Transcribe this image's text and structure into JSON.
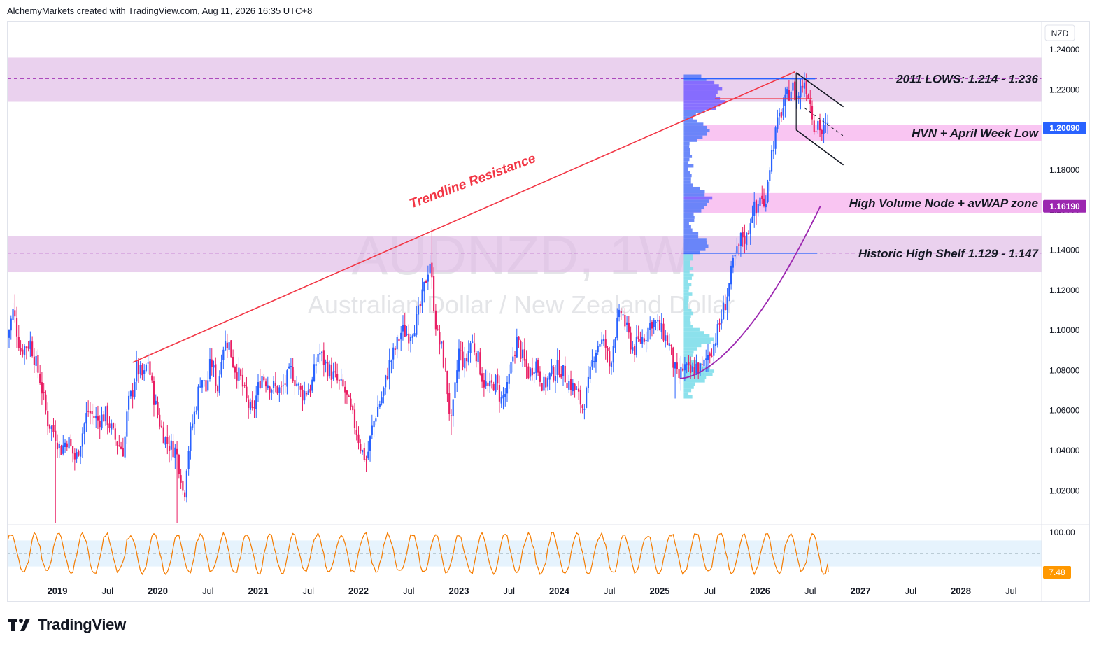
{
  "header": {
    "text": "AlchemyMarkets created with TradingView.com, Aug 11, 2026 16:35 UTC+8"
  },
  "footer": {
    "logo_text": "TradingView",
    "logo_icon": "tradingview-logo-icon"
  },
  "colors": {
    "up_candle": "#2962ff",
    "down_candle": "#e91e63",
    "resistance_zone": "#e1bee7",
    "volume_node_zone": "#f8bbf0",
    "trendline": "#f23645",
    "avwap": "#9c27b0",
    "oscillator": "#f57c00",
    "osc_band": "#e3f2fd",
    "last_price_tag": "#2962ff",
    "avwap_tag": "#9c27b0",
    "osc_tag": "#ff9800"
  },
  "chart_data": {
    "type": "candlestick",
    "symbol": "AUDNZD",
    "timeframe": "1W",
    "watermark_title": "AUDNZD, 1W",
    "watermark_subtitle": "Australian Dollar / New Zealand Dollar",
    "currency": "NZD",
    "ylim": [
      1.0035,
      1.2455
    ],
    "y_ticks": [
      "1.24000",
      "1.22000",
      "1.20000",
      "1.18000",
      "1.16000",
      "1.14000",
      "1.12000",
      "1.10000",
      "1.08000",
      "1.06000",
      "1.04000",
      "1.02000"
    ],
    "x_labels": [
      {
        "label": "2019",
        "t": 2019.0,
        "bold": true
      },
      {
        "label": "Jul",
        "t": 2019.5,
        "bold": false
      },
      {
        "label": "2020",
        "t": 2020.0,
        "bold": true
      },
      {
        "label": "Jul",
        "t": 2020.5,
        "bold": false
      },
      {
        "label": "2021",
        "t": 2021.0,
        "bold": true
      },
      {
        "label": "Jul",
        "t": 2021.5,
        "bold": false
      },
      {
        "label": "2022",
        "t": 2022.0,
        "bold": true
      },
      {
        "label": "Jul",
        "t": 2022.5,
        "bold": false
      },
      {
        "label": "2023",
        "t": 2023.0,
        "bold": true
      },
      {
        "label": "Jul",
        "t": 2023.5,
        "bold": false
      },
      {
        "label": "2024",
        "t": 2024.0,
        "bold": true
      },
      {
        "label": "Jul",
        "t": 2024.5,
        "bold": false
      },
      {
        "label": "2025",
        "t": 2025.0,
        "bold": true
      },
      {
        "label": "Jul",
        "t": 2025.5,
        "bold": false
      },
      {
        "label": "2026",
        "t": 2026.0,
        "bold": true
      },
      {
        "label": "Jul",
        "t": 2026.5,
        "bold": false
      },
      {
        "label": "2027",
        "t": 2027.0,
        "bold": true
      },
      {
        "label": "Jul",
        "t": 2027.5,
        "bold": false
      },
      {
        "label": "2028",
        "t": 2028.0,
        "bold": true
      },
      {
        "label": "Jul",
        "t": 2028.5,
        "bold": false
      }
    ],
    "price_path": [
      [
        2018.5,
        1.092
      ],
      [
        2018.58,
        1.11
      ],
      [
        2018.65,
        1.09
      ],
      [
        2018.75,
        1.094
      ],
      [
        2018.85,
        1.075
      ],
      [
        2018.92,
        1.055
      ],
      [
        2019.0,
        1.048
      ],
      [
        2019.05,
        1.04
      ],
      [
        2019.12,
        1.046
      ],
      [
        2019.2,
        1.035
      ],
      [
        2019.25,
        1.045
      ],
      [
        2019.32,
        1.06
      ],
      [
        2019.42,
        1.055
      ],
      [
        2019.5,
        1.058
      ],
      [
        2019.6,
        1.045
      ],
      [
        2019.68,
        1.04
      ],
      [
        2019.72,
        1.062
      ],
      [
        2019.78,
        1.072
      ],
      [
        2019.8,
        1.082
      ],
      [
        2019.88,
        1.076
      ],
      [
        2019.92,
        1.086
      ],
      [
        2019.96,
        1.072
      ],
      [
        2020.0,
        1.062
      ],
      [
        2020.05,
        1.052
      ],
      [
        2020.1,
        1.045
      ],
      [
        2020.15,
        1.042
      ],
      [
        2020.2,
        1.04
      ],
      [
        2020.25,
        1.028
      ],
      [
        2020.28,
        1.015
      ],
      [
        2020.31,
        1.035
      ],
      [
        2020.35,
        1.05
      ],
      [
        2020.4,
        1.062
      ],
      [
        2020.45,
        1.078
      ],
      [
        2020.5,
        1.07
      ],
      [
        2020.55,
        1.085
      ],
      [
        2020.62,
        1.07
      ],
      [
        2020.66,
        1.092
      ],
      [
        2020.72,
        1.095
      ],
      [
        2020.78,
        1.082
      ],
      [
        2020.85,
        1.075
      ],
      [
        2020.9,
        1.065
      ],
      [
        2020.96,
        1.058
      ],
      [
        2021.05,
        1.078
      ],
      [
        2021.15,
        1.072
      ],
      [
        2021.25,
        1.07
      ],
      [
        2021.35,
        1.08
      ],
      [
        2021.45,
        1.068
      ],
      [
        2021.55,
        1.072
      ],
      [
        2021.62,
        1.09
      ],
      [
        2021.7,
        1.082
      ],
      [
        2021.8,
        1.075
      ],
      [
        2021.88,
        1.07
      ],
      [
        2021.95,
        1.058
      ],
      [
        2022.0,
        1.05
      ],
      [
        2022.05,
        1.04
      ],
      [
        2022.1,
        1.035
      ],
      [
        2022.15,
        1.05
      ],
      [
        2022.2,
        1.06
      ],
      [
        2022.26,
        1.068
      ],
      [
        2022.32,
        1.082
      ],
      [
        2022.38,
        1.09
      ],
      [
        2022.45,
        1.1
      ],
      [
        2022.52,
        1.098
      ],
      [
        2022.6,
        1.105
      ],
      [
        2022.65,
        1.115
      ],
      [
        2022.7,
        1.128
      ],
      [
        2022.73,
        1.135
      ],
      [
        2022.76,
        1.118
      ],
      [
        2022.8,
        1.098
      ],
      [
        2022.85,
        1.09
      ],
      [
        2022.9,
        1.072
      ],
      [
        2022.94,
        1.052
      ],
      [
        2022.97,
        1.065
      ],
      [
        2023.02,
        1.09
      ],
      [
        2023.08,
        1.082
      ],
      [
        2023.14,
        1.095
      ],
      [
        2023.2,
        1.088
      ],
      [
        2023.26,
        1.075
      ],
      [
        2023.32,
        1.07
      ],
      [
        2023.38,
        1.075
      ],
      [
        2023.44,
        1.065
      ],
      [
        2023.5,
        1.07
      ],
      [
        2023.56,
        1.088
      ],
      [
        2023.6,
        1.095
      ],
      [
        2023.66,
        1.085
      ],
      [
        2023.72,
        1.078
      ],
      [
        2023.78,
        1.085
      ],
      [
        2023.86,
        1.072
      ],
      [
        2023.94,
        1.078
      ],
      [
        2024.02,
        1.082
      ],
      [
        2024.1,
        1.075
      ],
      [
        2024.18,
        1.07
      ],
      [
        2024.25,
        1.062
      ],
      [
        2024.3,
        1.07
      ],
      [
        2024.36,
        1.088
      ],
      [
        2024.42,
        1.095
      ],
      [
        2024.48,
        1.092
      ],
      [
        2024.52,
        1.082
      ],
      [
        2024.58,
        1.1
      ],
      [
        2024.64,
        1.11
      ],
      [
        2024.7,
        1.098
      ],
      [
        2024.76,
        1.09
      ],
      [
        2024.82,
        1.095
      ],
      [
        2024.88,
        1.098
      ],
      [
        2024.94,
        1.105
      ],
      [
        2025.0,
        1.102
      ],
      [
        2025.06,
        1.098
      ],
      [
        2025.12,
        1.092
      ],
      [
        2025.16,
        1.082
      ],
      [
        2025.2,
        1.075
      ],
      [
        2025.26,
        1.082
      ],
      [
        2025.32,
        1.078
      ],
      [
        2025.38,
        1.082
      ],
      [
        2025.44,
        1.08
      ],
      [
        2025.5,
        1.088
      ],
      [
        2025.55,
        1.092
      ],
      [
        2025.6,
        1.1
      ],
      [
        2025.64,
        1.108
      ],
      [
        2025.68,
        1.115
      ],
      [
        2025.72,
        1.125
      ],
      [
        2025.76,
        1.135
      ],
      [
        2025.8,
        1.14
      ],
      [
        2025.84,
        1.148
      ],
      [
        2025.88,
        1.145
      ],
      [
        2025.92,
        1.155
      ],
      [
        2025.95,
        1.162
      ],
      [
        2025.98,
        1.158
      ],
      [
        2026.02,
        1.168
      ],
      [
        2026.06,
        1.16
      ],
      [
        2026.1,
        1.178
      ],
      [
        2026.14,
        1.19
      ],
      [
        2026.18,
        1.2
      ],
      [
        2026.22,
        1.208
      ],
      [
        2026.26,
        1.212
      ],
      [
        2026.3,
        1.218
      ],
      [
        2026.34,
        1.222
      ],
      [
        2026.38,
        1.215
      ],
      [
        2026.42,
        1.22
      ],
      [
        2026.46,
        1.225
      ],
      [
        2026.5,
        1.218
      ],
      [
        2026.54,
        1.208
      ],
      [
        2026.57,
        1.2
      ],
      [
        2026.6,
        1.205
      ],
      [
        2026.63,
        1.198
      ],
      [
        2026.66,
        1.2
      ],
      [
        2026.68,
        1.201
      ]
    ],
    "annotations": {
      "trendline": {
        "label": "Trendline Resistance",
        "from": [
          2019.75,
          1.084
        ],
        "to": [
          2026.35,
          1.229
        ]
      },
      "zones": [
        {
          "label": "2011 LOWS: 1.214 - 1.236",
          "y1": 1.214,
          "y2": 1.236,
          "kind": "resistance"
        },
        {
          "label": "HVN + April Week Low",
          "y1": 1.1945,
          "y2": 1.2025,
          "kind": "volume"
        },
        {
          "label": "High Volume Node + avWAP zone",
          "y1": 1.1585,
          "y2": 1.1685,
          "kind": "volume"
        },
        {
          "label": "Historic High Shelf 1.129 - 1.147",
          "y1": 1.129,
          "y2": 1.147,
          "kind": "resistance"
        }
      ],
      "dashed_levels": [
        1.2255,
        1.1385
      ],
      "price_tags": [
        {
          "value": "1.20090",
          "y": 1.2009,
          "kind": "last"
        },
        {
          "value": "1.16190",
          "y": 1.1619,
          "kind": "avwap"
        }
      ]
    },
    "oscillator": {
      "ylim": [
        0,
        100
      ],
      "label_top": "100.00",
      "value_label": "7.48",
      "value": 7.48,
      "band": [
        20,
        80
      ]
    }
  }
}
